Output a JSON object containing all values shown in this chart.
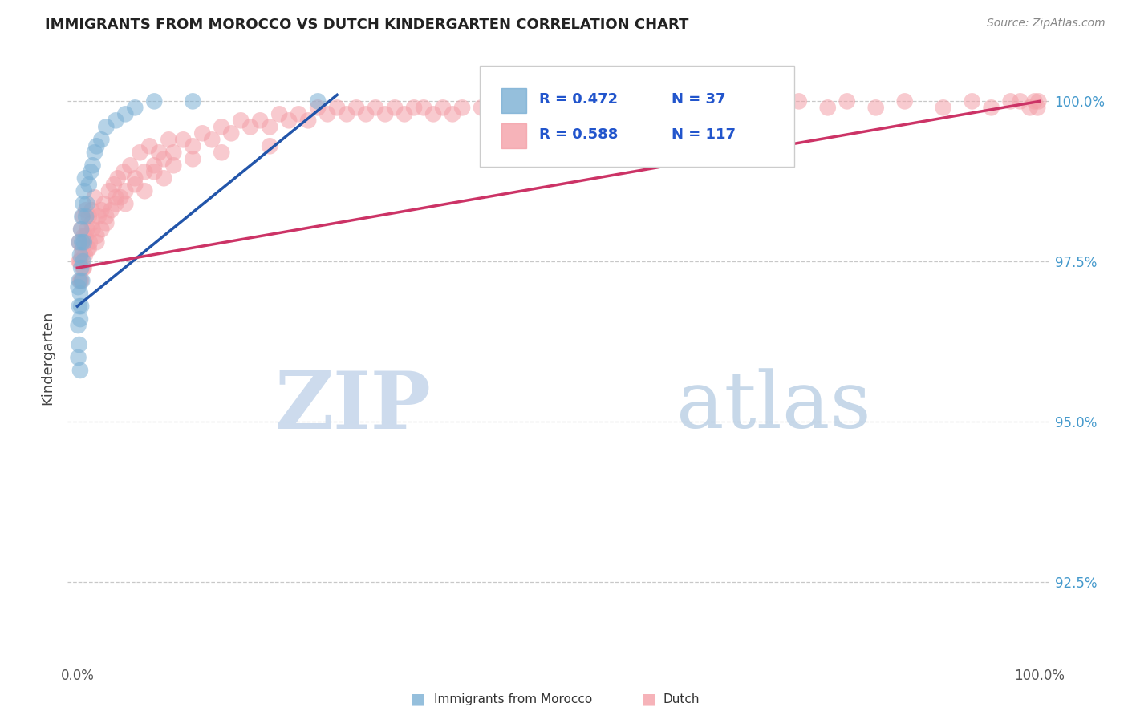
{
  "title": "IMMIGRANTS FROM MOROCCO VS DUTCH KINDERGARTEN CORRELATION CHART",
  "source_text": "Source: ZipAtlas.com",
  "ylabel": "Kindergarten",
  "legend_r_blue": "R = 0.472",
  "legend_n_blue": "N = 37",
  "legend_r_pink": "R = 0.588",
  "legend_n_pink": "N = 117",
  "watermark_zip": "ZIP",
  "watermark_atlas": "atlas",
  "color_blue": "#7BAFD4",
  "color_pink": "#F4A0A8",
  "color_blue_line": "#2255AA",
  "color_pink_line": "#CC3366",
  "color_grid": "#BBBBBB",
  "color_ytick": "#4499CC",
  "color_xtick": "#555555",
  "ytick_labels": [
    "92.5%",
    "95.0%",
    "97.5%",
    "100.0%"
  ],
  "ytick_values": [
    0.925,
    0.95,
    0.975,
    1.0
  ],
  "ylim": [
    0.912,
    1.008
  ],
  "xlim": [
    -0.01,
    1.01
  ],
  "blue_x": [
    0.001,
    0.001,
    0.001,
    0.002,
    0.002,
    0.002,
    0.002,
    0.003,
    0.003,
    0.003,
    0.003,
    0.004,
    0.004,
    0.004,
    0.005,
    0.005,
    0.005,
    0.006,
    0.006,
    0.007,
    0.007,
    0.008,
    0.009,
    0.01,
    0.012,
    0.014,
    0.016,
    0.018,
    0.02,
    0.025,
    0.03,
    0.04,
    0.05,
    0.06,
    0.08,
    0.12,
    0.25
  ],
  "blue_y": [
    0.971,
    0.965,
    0.96,
    0.978,
    0.972,
    0.968,
    0.962,
    0.976,
    0.97,
    0.966,
    0.958,
    0.98,
    0.974,
    0.968,
    0.982,
    0.978,
    0.972,
    0.984,
    0.975,
    0.986,
    0.978,
    0.988,
    0.982,
    0.984,
    0.987,
    0.989,
    0.99,
    0.992,
    0.993,
    0.994,
    0.996,
    0.997,
    0.998,
    0.999,
    1.0,
    1.0,
    1.0
  ],
  "pink_x": [
    0.002,
    0.003,
    0.004,
    0.004,
    0.005,
    0.006,
    0.006,
    0.007,
    0.008,
    0.009,
    0.01,
    0.011,
    0.012,
    0.013,
    0.015,
    0.016,
    0.018,
    0.02,
    0.022,
    0.025,
    0.028,
    0.03,
    0.033,
    0.035,
    0.038,
    0.04,
    0.042,
    0.045,
    0.048,
    0.05,
    0.055,
    0.06,
    0.065,
    0.07,
    0.075,
    0.08,
    0.085,
    0.09,
    0.095,
    0.1,
    0.11,
    0.12,
    0.13,
    0.14,
    0.15,
    0.16,
    0.17,
    0.18,
    0.19,
    0.2,
    0.21,
    0.22,
    0.23,
    0.24,
    0.25,
    0.26,
    0.27,
    0.28,
    0.29,
    0.3,
    0.31,
    0.32,
    0.33,
    0.34,
    0.35,
    0.36,
    0.37,
    0.38,
    0.39,
    0.4,
    0.42,
    0.44,
    0.46,
    0.48,
    0.5,
    0.52,
    0.55,
    0.58,
    0.61,
    0.64,
    0.67,
    0.7,
    0.72,
    0.75,
    0.78,
    0.8,
    0.83,
    0.86,
    0.9,
    0.93,
    0.95,
    0.97,
    0.98,
    0.99,
    0.995,
    0.998,
    0.999,
    0.002,
    0.003,
    0.005,
    0.007,
    0.009,
    0.012,
    0.015,
    0.02,
    0.025,
    0.03,
    0.04,
    0.05,
    0.06,
    0.07,
    0.08,
    0.09,
    0.1,
    0.12,
    0.15,
    0.2
  ],
  "pink_y": [
    0.978,
    0.975,
    0.98,
    0.972,
    0.977,
    0.982,
    0.974,
    0.979,
    0.976,
    0.983,
    0.98,
    0.977,
    0.982,
    0.978,
    0.983,
    0.98,
    0.985,
    0.978,
    0.982,
    0.98,
    0.984,
    0.982,
    0.986,
    0.983,
    0.987,
    0.984,
    0.988,
    0.985,
    0.989,
    0.986,
    0.99,
    0.988,
    0.992,
    0.989,
    0.993,
    0.99,
    0.992,
    0.991,
    0.994,
    0.992,
    0.994,
    0.993,
    0.995,
    0.994,
    0.996,
    0.995,
    0.997,
    0.996,
    0.997,
    0.996,
    0.998,
    0.997,
    0.998,
    0.997,
    0.999,
    0.998,
    0.999,
    0.998,
    0.999,
    0.998,
    0.999,
    0.998,
    0.999,
    0.998,
    0.999,
    0.999,
    0.998,
    0.999,
    0.998,
    0.999,
    0.999,
    0.999,
    0.999,
    0.999,
    0.999,
    0.999,
    0.999,
    1.0,
    0.999,
    1.0,
    0.999,
    1.0,
    0.999,
    1.0,
    0.999,
    1.0,
    0.999,
    1.0,
    0.999,
    1.0,
    0.999,
    1.0,
    1.0,
    0.999,
    1.0,
    0.999,
    1.0,
    0.975,
    0.972,
    0.976,
    0.974,
    0.979,
    0.977,
    0.981,
    0.979,
    0.983,
    0.981,
    0.985,
    0.984,
    0.987,
    0.986,
    0.989,
    0.988,
    0.99,
    0.991,
    0.992,
    0.993
  ]
}
